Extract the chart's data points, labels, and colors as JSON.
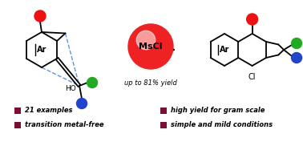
{
  "background_color": "#ffffff",
  "msci_circle_color": "#ee2222",
  "msci_text": "MsCl",
  "yield_text": "up to 81% yield",
  "arrow_color": "#000000",
  "red_dot_color": "#ee1111",
  "green_dot_color": "#22aa22",
  "blue_dot_color": "#2244cc",
  "dashed_line_color": "#5599ee",
  "ho_text": "HO",
  "ar_text": "Ar",
  "cl_text": "Cl",
  "legend_box_color": "#7a1030",
  "legend_items": [
    "21 examples",
    "transition metal-free",
    "high yield for gram scale",
    "simple and mild conditions"
  ]
}
